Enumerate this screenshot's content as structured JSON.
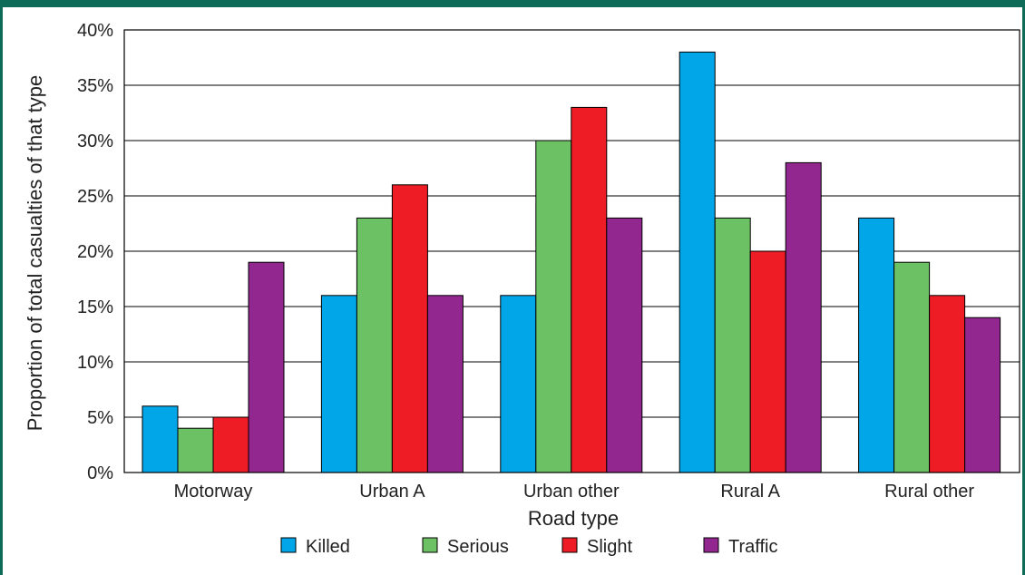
{
  "chart_data": {
    "type": "bar",
    "title": "",
    "xlabel": "Road type",
    "ylabel": "Proportion of total casualties of that type",
    "categories": [
      "Motorway",
      "Urban A",
      "Urban other",
      "Rural A",
      "Rural other"
    ],
    "series": [
      {
        "name": "Killed",
        "color": "#00a6e8",
        "values": [
          6,
          16,
          16,
          38,
          23
        ]
      },
      {
        "name": "Serious",
        "color": "#6cc164",
        "values": [
          4,
          23,
          30,
          23,
          19
        ]
      },
      {
        "name": "Slight",
        "color": "#ee1c25",
        "values": [
          5,
          26,
          33,
          20,
          16
        ]
      },
      {
        "name": "Traffic",
        "color": "#92278f",
        "values": [
          19,
          16,
          23,
          28,
          14
        ]
      }
    ],
    "ylim": [
      0,
      40
    ],
    "yticks": [
      0,
      5,
      10,
      15,
      20,
      25,
      30,
      35,
      40
    ],
    "ytick_labels": [
      "0%",
      "5%",
      "10%",
      "15%",
      "20%",
      "25%",
      "30%",
      "35%",
      "40%"
    ],
    "grid": true,
    "legend_position": "bottom"
  }
}
